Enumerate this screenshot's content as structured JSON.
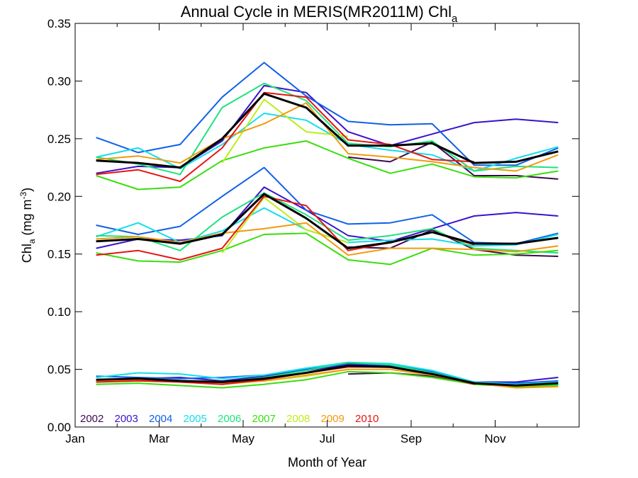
{
  "chart_data": {
    "type": "line",
    "title": {
      "main": "Annual Cycle in MERIS(MR2011M) Chl",
      "subscript": "a"
    },
    "xlabel": "Month of Year",
    "ylabel": {
      "prefix": "Chl",
      "sub": "a",
      "units_open": " (mg m",
      "sup": "-3",
      "units_close": ")"
    },
    "xlim": [
      0,
      12
    ],
    "ylim": [
      0,
      0.35
    ],
    "x_ticks": [
      {
        "v": 0,
        "label": "Jan"
      },
      {
        "v": 2,
        "label": "Mar"
      },
      {
        "v": 4,
        "label": "May"
      },
      {
        "v": 6,
        "label": "Jul"
      },
      {
        "v": 8,
        "label": "Sep"
      },
      {
        "v": 10,
        "label": "Nov"
      }
    ],
    "y_ticks": [
      {
        "v": 0.0,
        "label": "0.00"
      },
      {
        "v": 0.05,
        "label": "0.05"
      },
      {
        "v": 0.1,
        "label": "0.10"
      },
      {
        "v": 0.15,
        "label": "0.15"
      },
      {
        "v": 0.2,
        "label": "0.20"
      },
      {
        "v": 0.25,
        "label": "0.25"
      },
      {
        "v": 0.3,
        "label": "0.30"
      },
      {
        "v": 0.35,
        "label": "0.35"
      }
    ],
    "x": [
      0.5,
      1.5,
      2.5,
      3.5,
      4.5,
      5.5,
      6.5,
      7.5,
      8.5,
      9.5,
      10.5,
      11.5
    ],
    "legend_position": "bottom-left",
    "series": [
      {
        "name": "2002",
        "color": "#3d0a4f",
        "upper": [
          null,
          null,
          null,
          null,
          null,
          null,
          0.234,
          0.23,
          0.247,
          0.218,
          0.218,
          0.215
        ],
        "middle": [
          null,
          null,
          null,
          null,
          null,
          null,
          0.156,
          0.155,
          0.171,
          0.154,
          0.149,
          0.148
        ],
        "lower": [
          null,
          null,
          null,
          null,
          null,
          null,
          0.046,
          0.047,
          0.044,
          0.037,
          0.036,
          0.037
        ]
      },
      {
        "name": "2003",
        "color": "#3a12cc",
        "upper": [
          0.22,
          0.226,
          0.225,
          0.248,
          0.296,
          0.29,
          0.256,
          0.244,
          0.254,
          0.264,
          0.267,
          0.264
        ],
        "middle": [
          0.155,
          0.163,
          0.162,
          0.166,
          0.208,
          0.188,
          0.166,
          0.161,
          0.172,
          0.183,
          0.186,
          0.183
        ],
        "lower": [
          0.04,
          0.042,
          0.043,
          0.04,
          0.044,
          0.049,
          0.054,
          0.053,
          0.047,
          0.039,
          0.039,
          0.043
        ]
      },
      {
        "name": "2004",
        "color": "#1060e6",
        "upper": [
          0.251,
          0.238,
          0.245,
          0.286,
          0.316,
          0.287,
          0.265,
          0.262,
          0.263,
          0.227,
          0.227,
          0.242
        ],
        "middle": [
          0.175,
          0.167,
          0.174,
          0.2,
          0.225,
          0.188,
          0.176,
          0.177,
          0.184,
          0.16,
          0.159,
          0.168
        ],
        "lower": [
          0.044,
          0.043,
          0.042,
          0.043,
          0.045,
          0.05,
          0.055,
          0.054,
          0.048,
          0.039,
          0.038,
          0.04
        ]
      },
      {
        "name": "2005",
        "color": "#13dfe9",
        "upper": [
          0.234,
          0.242,
          0.224,
          0.245,
          0.272,
          0.266,
          0.245,
          0.24,
          0.236,
          0.222,
          0.233,
          0.243
        ],
        "middle": [
          0.165,
          0.177,
          0.16,
          0.17,
          0.19,
          0.171,
          0.16,
          0.162,
          0.163,
          0.157,
          0.158,
          0.167
        ],
        "lower": [
          0.043,
          0.047,
          0.046,
          0.042,
          0.045,
          0.051,
          0.056,
          0.055,
          0.049,
          0.039,
          0.037,
          0.039
        ]
      },
      {
        "name": "2006",
        "color": "#1de37d",
        "upper": [
          0.234,
          0.228,
          0.219,
          0.277,
          0.298,
          0.283,
          0.246,
          0.243,
          0.248,
          0.222,
          0.226,
          0.225
        ],
        "middle": [
          0.166,
          0.165,
          0.153,
          0.182,
          0.203,
          0.184,
          0.162,
          0.166,
          0.172,
          0.155,
          0.153,
          0.151
        ],
        "lower": [
          0.039,
          0.04,
          0.04,
          0.039,
          0.043,
          0.049,
          0.056,
          0.054,
          0.047,
          0.038,
          0.036,
          0.037
        ]
      },
      {
        "name": "2007",
        "color": "#39de0c",
        "upper": [
          0.218,
          0.206,
          0.208,
          0.231,
          0.242,
          0.248,
          0.233,
          0.22,
          0.228,
          0.217,
          0.216,
          0.222
        ],
        "middle": [
          0.151,
          0.144,
          0.143,
          0.153,
          0.167,
          0.168,
          0.145,
          0.141,
          0.155,
          0.149,
          0.15,
          0.153
        ],
        "lower": [
          0.037,
          0.038,
          0.036,
          0.034,
          0.037,
          0.041,
          0.048,
          0.047,
          0.043,
          0.037,
          0.035,
          0.036
        ]
      },
      {
        "name": "2008",
        "color": "#bfec1a",
        "upper": [
          null,
          null,
          null,
          0.229,
          0.284,
          0.256,
          0.252,
          null,
          null,
          null,
          null,
          null
        ],
        "middle": [
          null,
          null,
          null,
          0.151,
          0.199,
          0.171,
          0.16,
          null,
          null,
          null,
          null,
          null
        ],
        "lower": [
          null,
          null,
          null,
          0.037,
          0.04,
          0.044,
          0.05,
          null,
          null,
          null,
          null,
          null
        ]
      },
      {
        "name": "2009",
        "color": "#f29a0c",
        "upper": [
          0.232,
          0.235,
          0.229,
          0.25,
          0.263,
          0.281,
          0.237,
          0.234,
          0.23,
          0.225,
          0.222,
          0.236
        ],
        "middle": [
          0.163,
          0.165,
          0.16,
          0.168,
          0.172,
          0.177,
          0.149,
          0.155,
          0.155,
          0.154,
          0.152,
          0.157
        ],
        "lower": [
          0.04,
          0.041,
          0.039,
          0.038,
          0.04,
          0.045,
          0.05,
          0.05,
          0.045,
          0.038,
          0.034,
          0.035
        ]
      },
      {
        "name": "2010",
        "color": "#ea1212",
        "upper": [
          0.219,
          0.223,
          0.213,
          0.242,
          0.29,
          0.286,
          0.249,
          0.245,
          0.232,
          0.23,
          null,
          null
        ],
        "middle": [
          0.149,
          0.153,
          0.145,
          0.155,
          0.2,
          0.192,
          0.153,
          0.16,
          0.169,
          0.158,
          null,
          null
        ],
        "lower": [
          0.039,
          0.04,
          0.039,
          0.037,
          0.041,
          0.047,
          0.052,
          0.052,
          0.046,
          0.037,
          null,
          null
        ]
      }
    ],
    "mean": {
      "color": "#000000",
      "upper": [
        0.231,
        0.229,
        0.225,
        0.25,
        0.289,
        0.277,
        0.244,
        0.244,
        0.246,
        0.229,
        0.23,
        0.239
      ],
      "middle": [
        0.161,
        0.163,
        0.159,
        0.167,
        0.202,
        0.181,
        0.155,
        0.16,
        0.169,
        0.159,
        0.159,
        0.164
      ],
      "lower": [
        0.041,
        0.042,
        0.04,
        0.039,
        0.042,
        0.047,
        0.053,
        0.052,
        0.046,
        0.038,
        0.036,
        0.038
      ]
    }
  }
}
